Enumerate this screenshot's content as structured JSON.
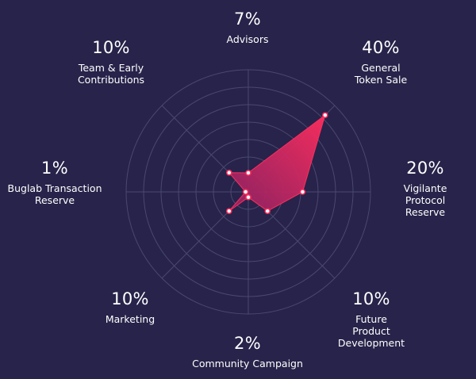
{
  "chart_data": {
    "type": "radar",
    "title": "",
    "value_unit": "%",
    "rlim": [
      0,
      45
    ],
    "grid": true,
    "categories": [
      "Advisors",
      "General\nToken Sale",
      "Vigilante\nProtocol Reserve",
      "Future\nProduct Development",
      "Community Campaign",
      "Marketing",
      "Buglab Transaction\nReserve",
      "Team & Early\nContributions"
    ],
    "value_labels": [
      "7%",
      "40%",
      "20%",
      "10%",
      "2%",
      "10%",
      "1%",
      "10%"
    ],
    "values": [
      7,
      40,
      20,
      10,
      2,
      10,
      1,
      10
    ],
    "colors": {
      "background": "#27234a",
      "fill_start": "#ff2d5e",
      "fill_end": "#8e2262",
      "grid": "#4b4870",
      "point": "#ffffff"
    }
  }
}
